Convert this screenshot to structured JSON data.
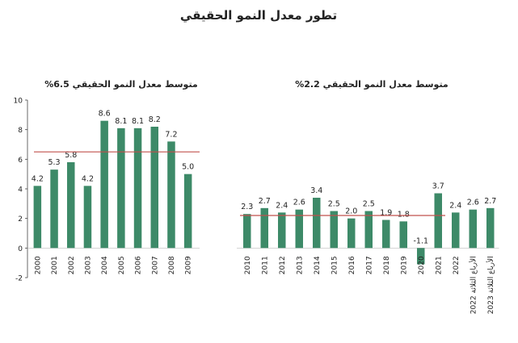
{
  "page": {
    "title": "تطور معدل النمو الحقيقي"
  },
  "colors": {
    "bar": "#3d8a68",
    "avg_line": "#c0504d",
    "axis": "#444444",
    "text": "#222222"
  },
  "chart_data": [
    {
      "type": "bar",
      "title": "متوسط معدل النمو الحقيقي 6.5%",
      "categories": [
        "2000",
        "2001",
        "2002",
        "2003",
        "2004",
        "2005",
        "2006",
        "2007",
        "2008",
        "2009"
      ],
      "values": [
        4.2,
        5.3,
        5.8,
        4.2,
        8.6,
        8.1,
        8.1,
        8.2,
        7.2,
        5.0
      ],
      "labels": [
        "4.2",
        "5.3",
        "5.8",
        "4.2",
        "8.6",
        "8.1",
        "8.1",
        "8.2",
        "7.2",
        "5.0"
      ],
      "average": 6.5,
      "ylim": [
        -2,
        10
      ],
      "yticks": [
        -2,
        0,
        2,
        4,
        6,
        8,
        10
      ],
      "ytick_labels": [
        "-2",
        "0",
        "2",
        "4",
        "6",
        "8",
        "10"
      ],
      "xlabel": "",
      "ylabel": ""
    },
    {
      "type": "bar",
      "title": "متوسط معدل النمو الحقيقي 2.2%",
      "categories": [
        "2010",
        "2011",
        "2012",
        "2013",
        "2014",
        "2015",
        "2016",
        "2017",
        "2018",
        "2019",
        "2020",
        "2021",
        "2022",
        "الأرباع الثلاثة 2022",
        "الأرباع الثلاثة 2023"
      ],
      "values": [
        2.3,
        2.7,
        2.4,
        2.6,
        3.4,
        2.5,
        2.0,
        2.5,
        1.9,
        1.8,
        -1.1,
        3.7,
        2.4,
        2.6,
        2.7
      ],
      "labels": [
        "2.3",
        "2.7",
        "2.4",
        "2.6",
        "3.4",
        "2.5",
        "2.0",
        "2.5",
        "1.9",
        "1.8",
        "-1.1",
        "3.7",
        "2.4",
        "2.6",
        "2.7"
      ],
      "average": 2.2,
      "ylim": [
        -2,
        10
      ],
      "xlabel": "",
      "ylabel": ""
    }
  ]
}
